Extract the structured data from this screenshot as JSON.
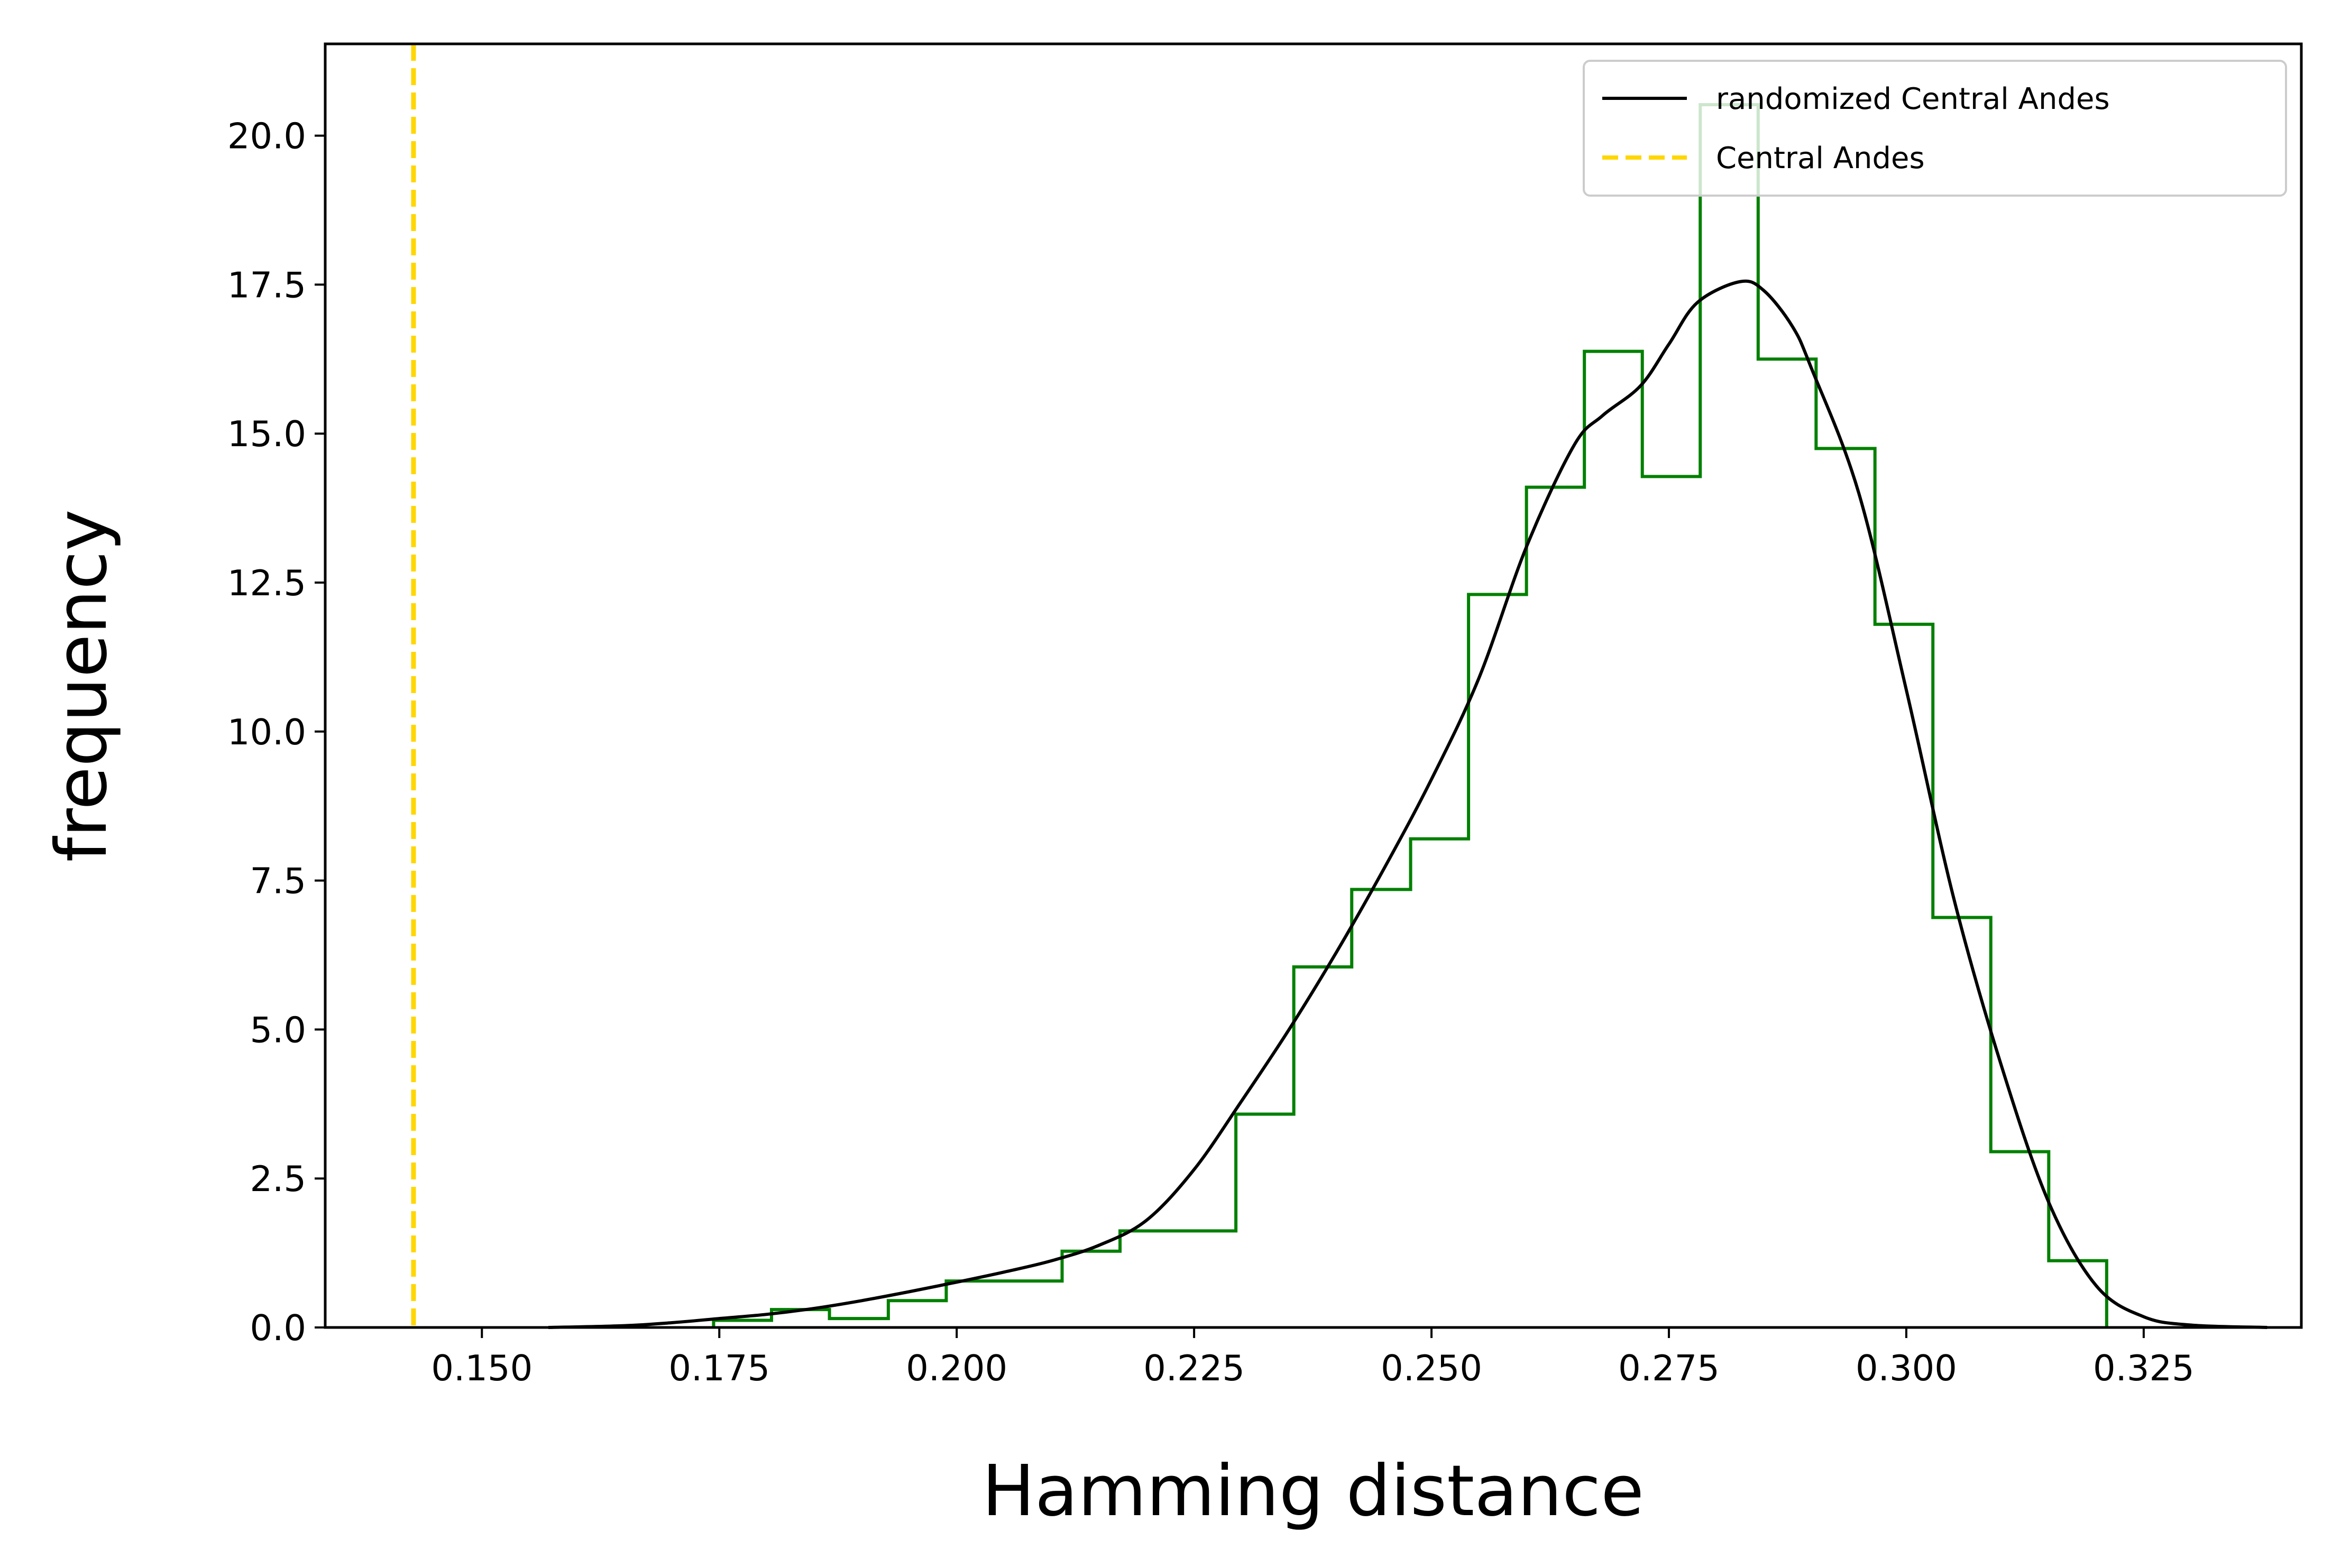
{
  "chart_data": {
    "type": "histogram",
    "title": "",
    "xlabel": "Hamming distance",
    "ylabel": "frequency",
    "xlim": [
      0.1335,
      0.3416
    ],
    "ylim": [
      0,
      21.54
    ],
    "xticks": [
      0.15,
      0.175,
      0.2,
      0.225,
      0.25,
      0.275,
      0.3,
      0.325
    ],
    "xtick_labels": [
      "0.150",
      "0.175",
      "0.200",
      "0.225",
      "0.250",
      "0.275",
      "0.300",
      "0.325"
    ],
    "yticks": [
      0,
      2.5,
      5,
      7.5,
      10,
      12.5,
      15,
      17.5,
      20
    ],
    "ytick_labels": [
      "0.0",
      "2.5",
      "5.0",
      "7.5",
      "10.0",
      "12.5",
      "15.0",
      "17.5",
      "20.0"
    ],
    "grid": false,
    "legend_position": "top-right",
    "histogram": {
      "name": "",
      "color": "#008000",
      "style": "step",
      "bin_edges": [
        0.1744,
        0.1805,
        0.1866,
        0.1928,
        0.1989,
        0.205,
        0.2111,
        0.2172,
        0.2233,
        0.2294,
        0.2355,
        0.2416,
        0.2478,
        0.2539,
        0.26,
        0.2661,
        0.2722,
        0.2783,
        0.2844,
        0.2905,
        0.2967,
        0.3028,
        0.3089,
        0.315,
        0.3211
      ],
      "counts": [
        0.12,
        0.3,
        0.15,
        0.45,
        0.78,
        0.78,
        1.28,
        1.62,
        1.62,
        3.58,
        6.05,
        7.35,
        8.2,
        12.3,
        14.1,
        16.38,
        14.28,
        20.52,
        16.25,
        14.75,
        11.8,
        6.88,
        2.95,
        1.12
      ]
    },
    "series": [
      {
        "name": "randomized Central Andes",
        "type": "line",
        "color": "#000000",
        "x": [
          0.157,
          0.165,
          0.17,
          0.175,
          0.18,
          0.185,
          0.19,
          0.195,
          0.2,
          0.205,
          0.21,
          0.215,
          0.22,
          0.225,
          0.23,
          0.235,
          0.24,
          0.245,
          0.25,
          0.255,
          0.26,
          0.265,
          0.268,
          0.272,
          0.275,
          0.278,
          0.2825,
          0.285,
          0.288,
          0.29,
          0.295,
          0.3,
          0.305,
          0.31,
          0.315,
          0.32,
          0.325,
          0.33,
          0.338
        ],
        "y": [
          0.0,
          0.03,
          0.08,
          0.15,
          0.22,
          0.32,
          0.45,
          0.6,
          0.76,
          0.93,
          1.12,
          1.38,
          1.8,
          2.65,
          3.8,
          5.0,
          6.3,
          7.7,
          9.2,
          10.9,
          13.1,
          14.8,
          15.3,
          15.8,
          16.5,
          17.2,
          17.55,
          17.4,
          16.8,
          16.1,
          14.0,
          10.7,
          7.2,
          4.4,
          2.1,
          0.7,
          0.18,
          0.04,
          0.0
        ]
      },
      {
        "name": "Central Andes",
        "type": "vline",
        "style": "dashed",
        "color": "#FFD700",
        "x": 0.1428
      }
    ]
  }
}
